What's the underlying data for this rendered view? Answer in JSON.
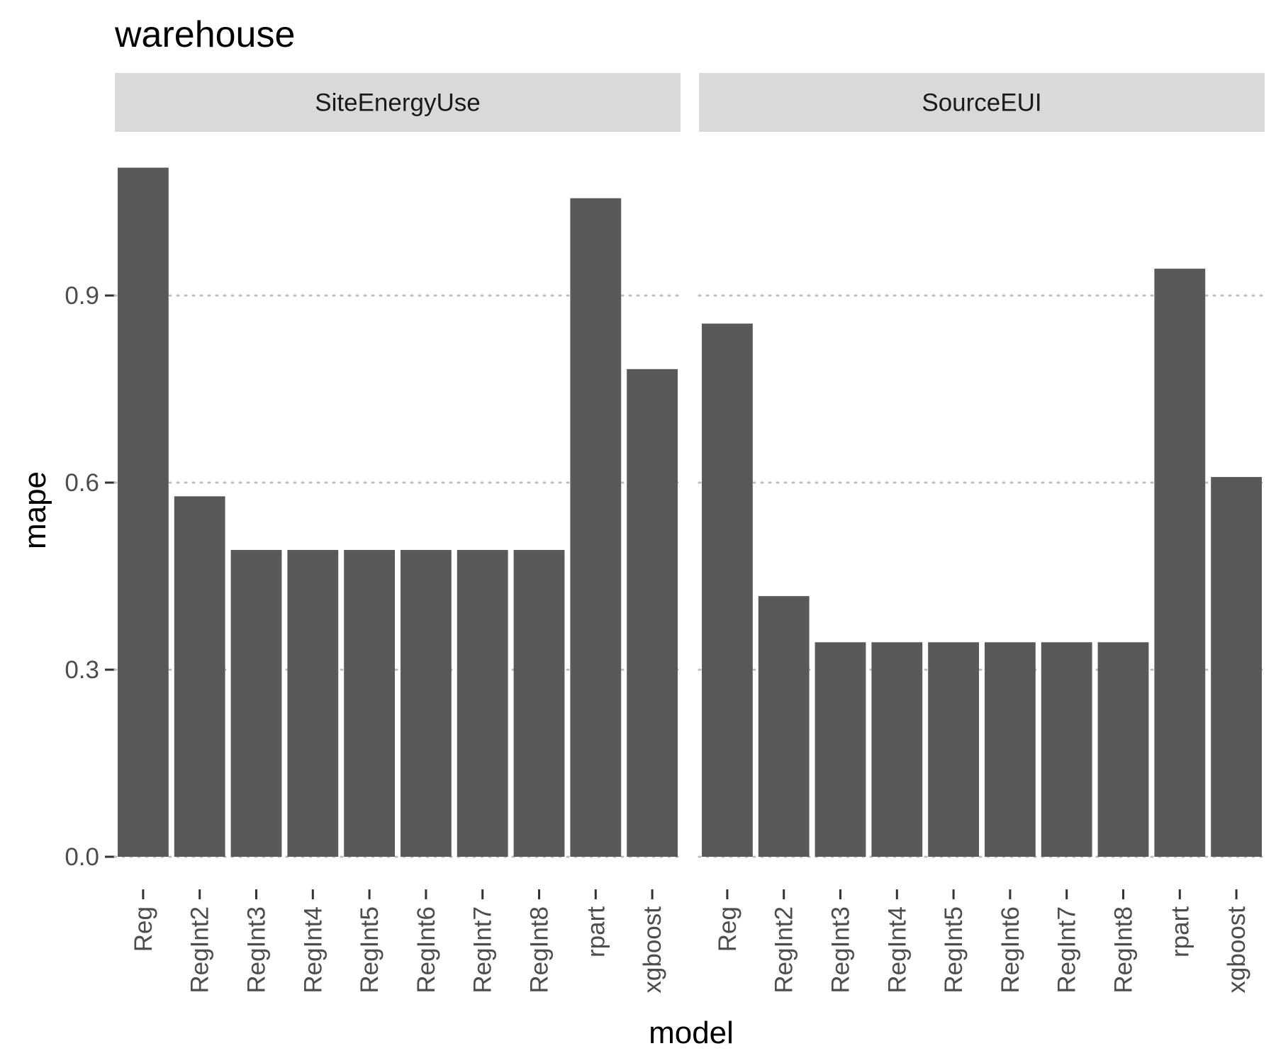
{
  "chart_data": {
    "type": "bar",
    "title": "warehouse",
    "xlabel": "model",
    "ylabel": "mape",
    "ylim": [
      0,
      1.15
    ],
    "yticks": [
      "0.0",
      "0.3",
      "0.6",
      "0.9"
    ],
    "grid": true,
    "bar_color": "#595959",
    "categories": [
      "Reg",
      "RegInt2",
      "RegInt3",
      "RegInt4",
      "RegInt5",
      "RegInt6",
      "RegInt7",
      "RegInt8",
      "rpart",
      "xgboost"
    ],
    "facets": [
      {
        "name": "SiteEnergyUse",
        "values": [
          1.105,
          0.578,
          0.492,
          0.492,
          0.492,
          0.492,
          0.492,
          0.492,
          1.056,
          0.782
        ]
      },
      {
        "name": "SourceEUI",
        "values": [
          0.855,
          0.418,
          0.344,
          0.344,
          0.344,
          0.344,
          0.344,
          0.344,
          0.943,
          0.609
        ]
      }
    ]
  }
}
